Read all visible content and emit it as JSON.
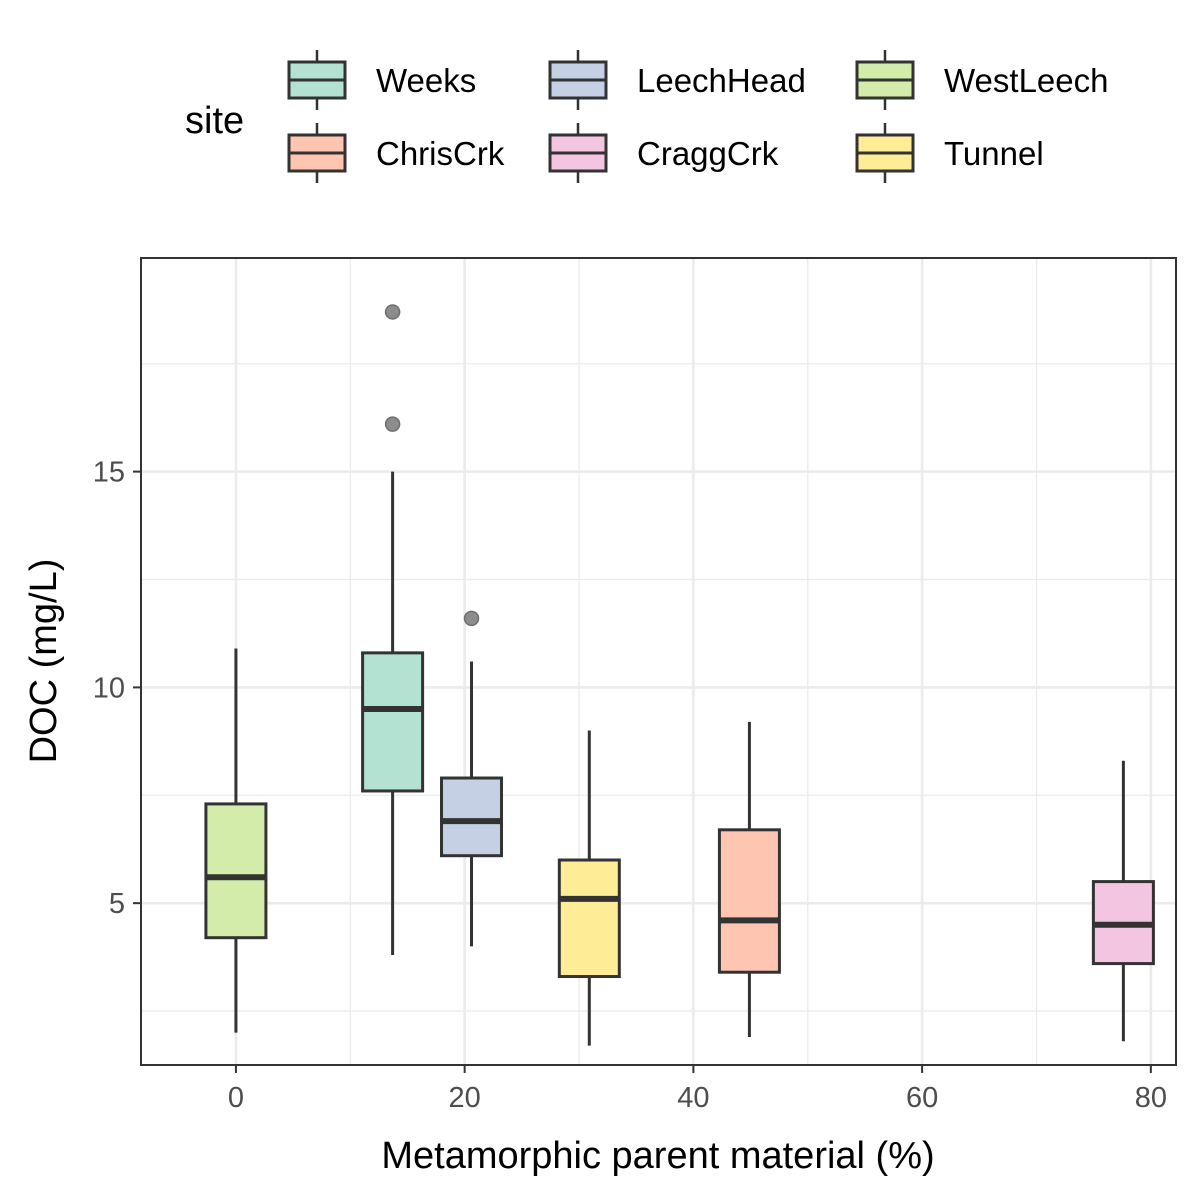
{
  "chart_data": {
    "type": "boxplot",
    "xlabel": "Metamorphic parent material (%)",
    "ylabel": "DOC (mg/L)",
    "xlim": [
      -8.3,
      82.2
    ],
    "ylim": [
      1.25,
      19.95
    ],
    "x_ticks": [
      0,
      20,
      40,
      60,
      80
    ],
    "x_tick_labels": [
      "0",
      "20",
      "40",
      "60",
      "80"
    ],
    "x_minor_ticks": [
      10,
      30,
      50,
      70
    ],
    "y_ticks": [
      5,
      10,
      15
    ],
    "y_tick_labels": [
      "5",
      "10",
      "15"
    ],
    "y_minor_ticks": [
      2.5,
      7.5,
      12.5,
      17.5
    ],
    "grid": true,
    "legend": {
      "title": "site",
      "position": "top",
      "order": [
        "Weeks",
        "LeechHead",
        "WestLeech",
        "ChrisCrk",
        "CraggCrk",
        "Tunnel"
      ]
    },
    "series": [
      {
        "name": "WestLeech",
        "x": 0,
        "whisker_low": 2.0,
        "q1": 4.2,
        "median": 5.6,
        "q3": 7.3,
        "whisker_high": 10.9,
        "outliers": [],
        "color": "#a6d854"
      },
      {
        "name": "Weeks",
        "x": 13.7,
        "whisker_low": 3.8,
        "q1": 7.6,
        "median": 9.5,
        "q3": 10.8,
        "whisker_high": 15.0,
        "outliers": [
          16.1,
          18.7
        ],
        "color": "#66c2a5"
      },
      {
        "name": "LeechHead",
        "x": 20.6,
        "whisker_low": 4.0,
        "q1": 6.1,
        "median": 6.9,
        "q3": 7.9,
        "whisker_high": 10.6,
        "outliers": [
          11.6
        ],
        "color": "#8da0cb"
      },
      {
        "name": "Tunnel",
        "x": 30.9,
        "whisker_low": 1.7,
        "q1": 3.3,
        "median": 5.1,
        "q3": 6.0,
        "whisker_high": 9.0,
        "outliers": [],
        "color": "#ffd92f"
      },
      {
        "name": "ChrisCrk",
        "x": 44.9,
        "whisker_low": 1.9,
        "q1": 3.4,
        "median": 4.6,
        "q3": 6.7,
        "whisker_high": 9.2,
        "outliers": [],
        "color": "#fc8d62"
      },
      {
        "name": "CraggCrk",
        "x": 77.6,
        "whisker_low": 1.8,
        "q1": 3.6,
        "median": 4.5,
        "q3": 5.5,
        "whisker_high": 8.3,
        "outliers": [],
        "color": "#e78ac3"
      }
    ]
  }
}
